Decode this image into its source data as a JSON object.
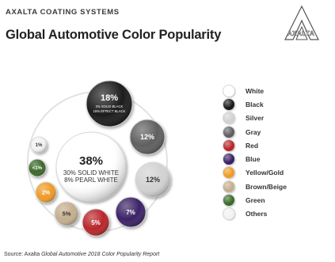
{
  "header": {
    "brand": "AXALTA COATING SYSTEMS",
    "title": "Global Automotive Color Popularity",
    "logo_text": "AXALTA"
  },
  "chart_data": {
    "type": "bubble",
    "title": "Global Automotive Color Popularity",
    "center": {
      "color": "White",
      "value": "38%",
      "details": [
        "30% SOLID WHITE",
        "8% PEARL WHITE"
      ]
    },
    "bubbles": [
      {
        "color": "Black",
        "value": "18%",
        "details": [
          "3% SOLID BLACK",
          "15% EFFECT BLACK"
        ]
      },
      {
        "color": "Gray",
        "value": "12%"
      },
      {
        "color": "Silver",
        "value": "12%"
      },
      {
        "color": "Blue",
        "value": "7%"
      },
      {
        "color": "Red",
        "value": "5%"
      },
      {
        "color": "Brown/Beige",
        "value": "5%"
      },
      {
        "color": "Yellow/Gold",
        "value": "2%"
      },
      {
        "color": "Green",
        "value": "<1%"
      },
      {
        "color": "Others",
        "value": "1%"
      }
    ],
    "legend_position": "right",
    "legend": [
      {
        "label": "White",
        "color": "#ffffff"
      },
      {
        "label": "Black",
        "color": "#1a1a1a"
      },
      {
        "label": "Silver",
        "color": "#d2d2d2"
      },
      {
        "label": "Gray",
        "color": "#5f5f5f"
      },
      {
        "label": "Red",
        "color": "#b8262b"
      },
      {
        "label": "Blue",
        "color": "#3a2066"
      },
      {
        "label": "Yellow/Gold",
        "color": "#f09a27"
      },
      {
        "label": "Brown/Beige",
        "color": "#c4ae8d"
      },
      {
        "label": "Green",
        "color": "#3a6b2c"
      },
      {
        "label": "Others",
        "color": "#f2f2f2"
      }
    ]
  },
  "source": {
    "prefix": "Source: Axalta",
    "report": "Global Automotive 2018 Color Popularity Report"
  }
}
